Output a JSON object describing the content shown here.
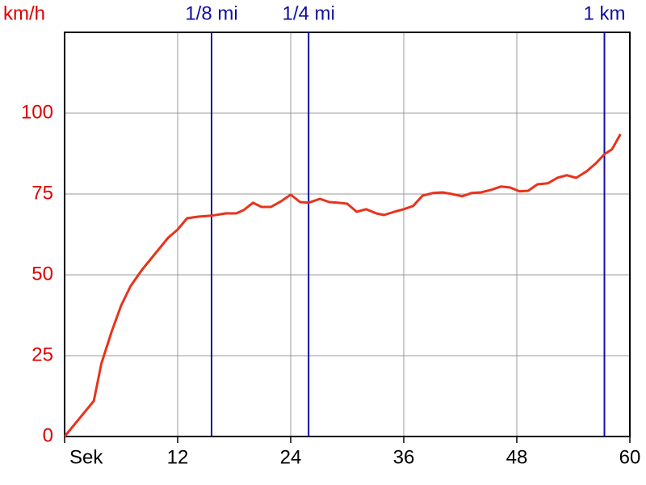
{
  "chart_data": {
    "type": "line",
    "y_label": "km/h",
    "x": [
      0,
      3.1,
      3.9,
      5.0,
      6.0,
      7.0,
      8.2,
      9.6,
      11.0,
      12.0,
      13.0,
      14.2,
      15.6,
      17.1,
      18.2,
      19.0,
      20.0,
      20.9,
      21.9,
      23.0,
      24.0,
      25.0,
      25.9,
      27.1,
      28.1,
      29.0,
      30.0,
      31.0,
      32.0,
      33.1,
      33.9,
      35.0,
      36.0,
      37.0,
      38.0,
      39.1,
      40.1,
      41.1,
      42.2,
      43.2,
      44.2,
      45.3,
      46.3,
      47.3,
      48.3,
      49.2,
      50.2,
      51.3,
      52.3,
      53.3,
      54.3,
      55.4,
      56.4,
      57.3,
      58.1,
      59.0
    ],
    "series": [
      {
        "name": "km/h",
        "color": "#e8331c",
        "values": [
          0,
          11,
          22.5,
          32.5,
          40.5,
          46.5,
          51.5,
          56.5,
          61.5,
          64,
          67.5,
          68,
          68.3,
          69,
          69,
          70,
          72.3,
          71,
          71,
          72.8,
          74.8,
          72.5,
          72.3,
          73.5,
          72.5,
          72.3,
          72,
          69.5,
          70.3,
          69,
          68.5,
          69.5,
          70.3,
          71.3,
          74.5,
          75.3,
          75.5,
          75,
          74.3,
          75.3,
          75.5,
          76.3,
          77.3,
          77,
          75.8,
          76,
          78,
          78.3,
          80,
          80.8,
          80,
          82,
          84.5,
          87.3,
          88.8,
          93.5
        ]
      }
    ],
    "xlim": [
      0,
      60
    ],
    "xticks": [
      {
        "value": 0,
        "label": "Sek"
      },
      12,
      24,
      36,
      48,
      60
    ],
    "ylim": [
      0,
      125
    ],
    "yticks": [
      0,
      25,
      50,
      75,
      100
    ],
    "grid": true,
    "axis_color": "#e00000",
    "markers": [
      {
        "x": 15.6,
        "label": "1/8 mi"
      },
      {
        "x": 25.9,
        "label": "1/4 mi"
      },
      {
        "x": 57.3,
        "label": "1 km"
      }
    ],
    "marker_color": "#1010a0"
  }
}
